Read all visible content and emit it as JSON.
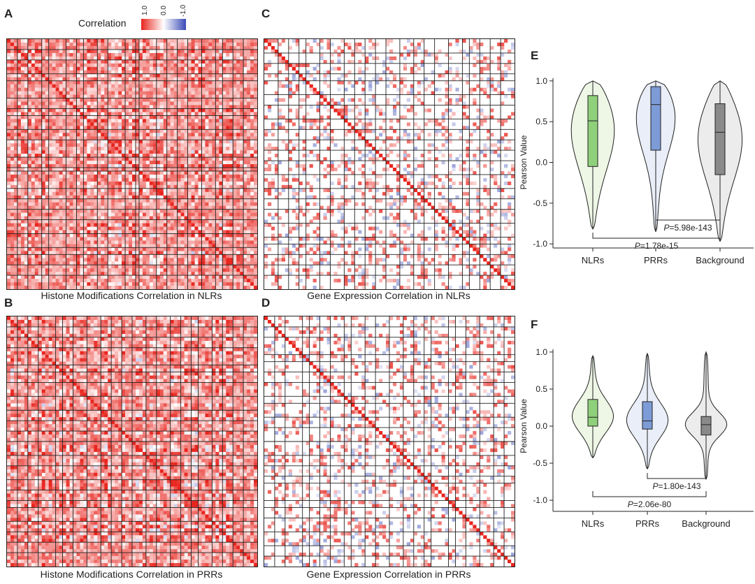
{
  "legend": {
    "title": "Correlation",
    "ticks": [
      "1.0",
      "0.0",
      "-1.0"
    ],
    "colors": {
      "positive": "#e8261f",
      "zero": "#ffffff",
      "negative": "#3a4bb5"
    }
  },
  "panels": {
    "A": {
      "letter": "A",
      "caption": "Histone Modifications Correlation in NLRs"
    },
    "B": {
      "letter": "B",
      "caption": "Histone Modifications Correlation in PRRs"
    },
    "C": {
      "letter": "C",
      "caption": "Gene Expression Correlation in NLRs"
    },
    "D": {
      "letter": "D",
      "caption": "Gene Expression Correlation in PRRs"
    },
    "E": {
      "letter": "E"
    },
    "F": {
      "letter": "F"
    }
  },
  "chart_data": [
    {
      "id": "A",
      "type": "heatmap",
      "title": "Histone Modifications Correlation in NLRs",
      "value_range": [
        -1.0,
        1.0
      ],
      "pattern": "dense red/blue blocks, mostly positive"
    },
    {
      "id": "B",
      "type": "heatmap",
      "title": "Histone Modifications Correlation in PRRs",
      "value_range": [
        -1.0,
        1.0
      ],
      "pattern": "dense red/blue blocks"
    },
    {
      "id": "C",
      "type": "heatmap",
      "title": "Gene Expression Correlation in NLRs",
      "value_range": [
        -1.0,
        1.0
      ],
      "pattern": "sparse, strong red diagonal"
    },
    {
      "id": "D",
      "type": "heatmap",
      "title": "Gene Expression Correlation in PRRs",
      "value_range": [
        -1.0,
        1.0
      ],
      "pattern": "sparse, strong red diagonal"
    },
    {
      "id": "E",
      "type": "violin",
      "ylabel": "Pearson Value",
      "ylim": [
        -1.05,
        1.05
      ],
      "yticks": [
        "1.0",
        "0.5",
        "0.0",
        "-0.5",
        "-1.0"
      ],
      "ytick_values": [
        1.0,
        0.5,
        0.0,
        -0.5,
        -1.0
      ],
      "categories": [
        "NLRs",
        "PRRs",
        "Background"
      ],
      "fill_colors": [
        "#eef6e6",
        "#e9eef8",
        "#ececec"
      ],
      "box_colors": [
        "#8fd07a",
        "#7d9bd6",
        "#8a8a8a"
      ],
      "series": [
        {
          "name": "NLRs",
          "min": -0.82,
          "q1": -0.05,
          "median": 0.51,
          "q3": 0.82,
          "max": 1.0
        },
        {
          "name": "PRRs",
          "min": -0.85,
          "q1": 0.15,
          "median": 0.71,
          "q3": 0.93,
          "max": 1.0
        },
        {
          "name": "Background",
          "min": -0.97,
          "q1": -0.15,
          "median": 0.37,
          "q3": 0.72,
          "max": 1.0
        }
      ],
      "annotations": [
        {
          "label": "P",
          "text": "=5.98e-143",
          "from": "PRRs",
          "to": "Background"
        },
        {
          "label": "P",
          "text": "=1.78e-15",
          "from": "NLRs",
          "to": "Background"
        }
      ]
    },
    {
      "id": "F",
      "type": "violin",
      "ylabel": "Pearson Value",
      "ylim": [
        -1.15,
        1.15
      ],
      "yticks": [
        "1.0",
        "0.5",
        "0.0",
        "-0.5",
        "-1.0"
      ],
      "ytick_values": [
        1.0,
        0.5,
        0.0,
        -0.5,
        -1.0
      ],
      "categories": [
        "NLRs",
        "PRRs",
        "Background"
      ],
      "fill_colors": [
        "#eef6e6",
        "#e9eef8",
        "#ececec"
      ],
      "box_colors": [
        "#8fd07a",
        "#7d9bd6",
        "#8a8a8a"
      ],
      "series": [
        {
          "name": "NLRs",
          "min": -0.43,
          "q1": 0.0,
          "median": 0.12,
          "q3": 0.36,
          "max": 0.95
        },
        {
          "name": "PRRs",
          "min": -0.58,
          "q1": -0.04,
          "median": 0.07,
          "q3": 0.33,
          "max": 0.98
        },
        {
          "name": "Background",
          "min": -0.72,
          "q1": -0.12,
          "median": 0.02,
          "q3": 0.13,
          "max": 1.0
        }
      ],
      "annotations": [
        {
          "label": "P",
          "text": "=1.80e-143",
          "from": "PRRs",
          "to": "Background"
        },
        {
          "label": "P",
          "text": "=2.06e-80",
          "from": "NLRs",
          "to": "Background"
        }
      ]
    }
  ]
}
